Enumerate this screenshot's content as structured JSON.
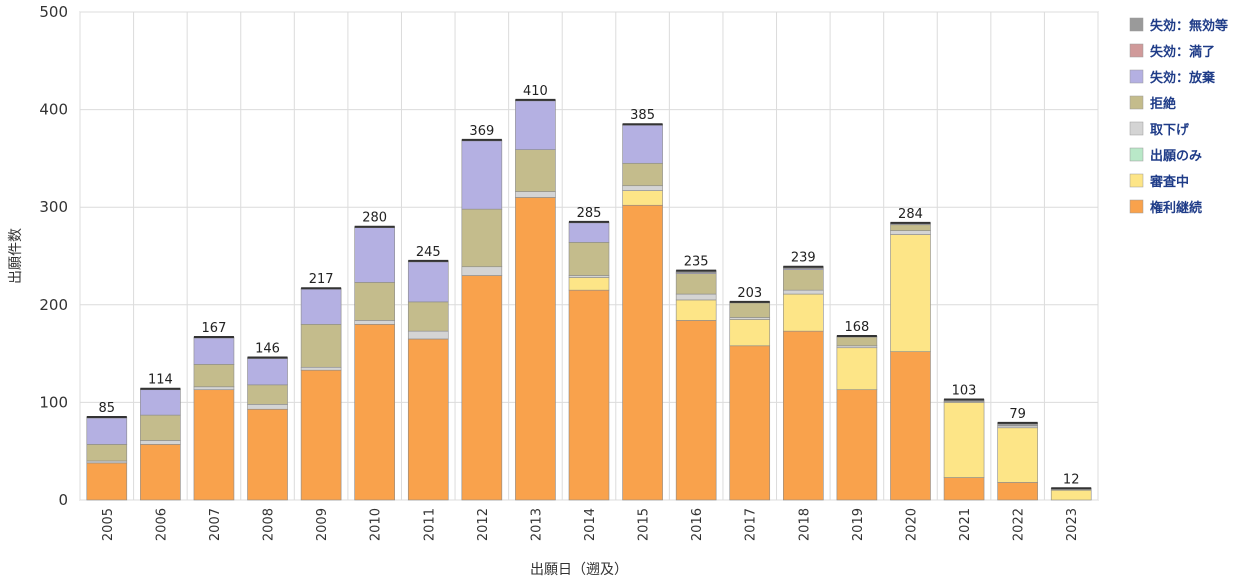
{
  "chart_data": {
    "type": "bar",
    "stacked": true,
    "xlabel": "出願日（遡及）",
    "ylabel": "出願件数",
    "ylim": [
      0,
      500
    ],
    "yticks": [
      "0",
      "100",
      "200",
      "300",
      "400",
      "500"
    ],
    "ytick_values": [
      0,
      100,
      200,
      300,
      400,
      500
    ],
    "legend_position": "right",
    "grid": true,
    "categories": [
      "2005",
      "2006",
      "2007",
      "2008",
      "2009",
      "2010",
      "2011",
      "2012",
      "2013",
      "2014",
      "2015",
      "2016",
      "2017",
      "2018",
      "2019",
      "2020",
      "2021",
      "2022",
      "2023"
    ],
    "totals": [
      85,
      114,
      167,
      146,
      217,
      280,
      245,
      369,
      410,
      285,
      385,
      235,
      203,
      239,
      168,
      284,
      103,
      79,
      12
    ],
    "total_labels": [
      "85",
      "114",
      "167",
      "146",
      "217",
      "280",
      "245",
      "369",
      "410",
      "285",
      "385",
      "235",
      "203",
      "239",
      "168",
      "284",
      "103",
      "79",
      "12"
    ],
    "series": [
      {
        "name": "権利継続",
        "color": "#f9a24c",
        "values": [
          38,
          57,
          113,
          93,
          133,
          180,
          165,
          230,
          310,
          215,
          302,
          184,
          158,
          173,
          113,
          152,
          23,
          18,
          0
        ]
      },
      {
        "name": "審査中",
        "color": "#fde587",
        "values": [
          0,
          0,
          0,
          0,
          0,
          0,
          0,
          0,
          0,
          13,
          15,
          21,
          27,
          38,
          43,
          120,
          77,
          56,
          10
        ]
      },
      {
        "name": "出願のみ",
        "color": "#b9e8c8",
        "values": [
          0,
          0,
          0,
          0,
          0,
          0,
          0,
          0,
          0,
          0,
          0,
          0,
          0,
          0,
          0,
          0,
          0,
          0,
          0
        ]
      },
      {
        "name": "取下げ",
        "color": "#d4d4d4",
        "values": [
          2,
          4,
          3,
          5,
          3,
          4,
          8,
          9,
          6,
          2,
          5,
          6,
          2,
          4,
          2,
          4,
          1,
          2,
          0
        ]
      },
      {
        "name": "拒絶",
        "color": "#c4bc8c",
        "values": [
          17,
          26,
          23,
          20,
          44,
          39,
          30,
          59,
          43,
          34,
          23,
          21,
          15,
          21,
          9,
          6,
          0,
          0,
          0
        ]
      },
      {
        "name": "失効：放棄",
        "color": "#b4b0e2",
        "values": [
          27,
          26,
          27,
          27,
          36,
          56,
          41,
          70,
          50,
          20,
          39,
          1,
          0,
          1,
          0,
          0,
          0,
          0,
          0
        ]
      },
      {
        "name": "失効：満了",
        "color": "#d09a9a",
        "values": [
          0,
          0,
          0,
          0,
          0,
          0,
          0,
          0,
          0,
          0,
          0,
          0,
          0,
          0,
          0,
          0,
          0,
          0,
          0
        ]
      },
      {
        "name": "失効：無効等",
        "color": "#9a9a9a",
        "values": [
          1,
          1,
          1,
          1,
          1,
          1,
          1,
          1,
          1,
          1,
          1,
          2,
          1,
          2,
          1,
          2,
          2,
          3,
          2
        ]
      }
    ],
    "legend_order": [
      "失効：無効等",
      "失効：満了",
      "失効：放棄",
      "拒絶",
      "取下げ",
      "出願のみ",
      "審査中",
      "権利継続"
    ]
  }
}
